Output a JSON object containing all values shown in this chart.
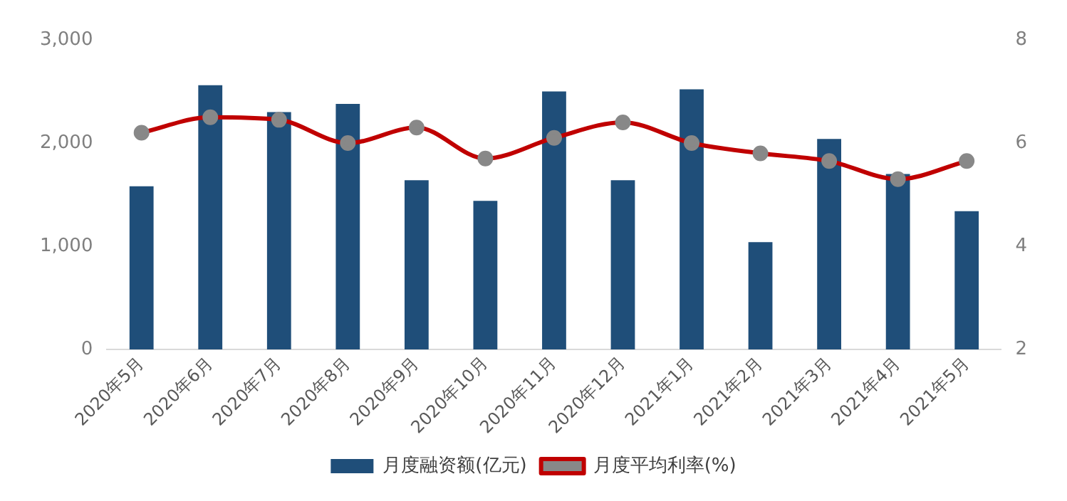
{
  "chart_data": {
    "type": "bar",
    "categories": [
      "2020年5月",
      "2020年6月",
      "2020年7月",
      "2020年8月",
      "2020年9月",
      "2020年10月",
      "2020年11月",
      "2020年12月",
      "2021年1月",
      "2021年2月",
      "2021年3月",
      "2021年4月",
      "2021年5月"
    ],
    "series": [
      {
        "name": "月度融资额(亿元)",
        "color": "#1f4e79",
        "values": [
          1580,
          2560,
          2300,
          2380,
          1640,
          1440,
          2500,
          1640,
          2520,
          1040,
          2040,
          1700,
          1340
        ]
      },
      {
        "name": "月度平均利率(%)",
        "type": "line",
        "axis": "y2",
        "color": "#c00000",
        "marker": "circle",
        "values": [
          6.2,
          6.5,
          6.45,
          6.0,
          6.3,
          5.7,
          6.1,
          6.4,
          6.0,
          5.8,
          5.65,
          5.3,
          5.65
        ]
      }
    ],
    "ylim": [
      0,
      3000
    ],
    "yticks": [
      0,
      {
        "value": 1000,
        "label": "1,000"
      },
      {
        "value": 2000,
        "label": "2,000"
      },
      {
        "value": 3000,
        "label": "3,000"
      }
    ],
    "y2lim": [
      2,
      8
    ],
    "y2ticks": [
      2,
      4,
      6,
      8
    ],
    "grid": false,
    "legend": "bottom"
  }
}
